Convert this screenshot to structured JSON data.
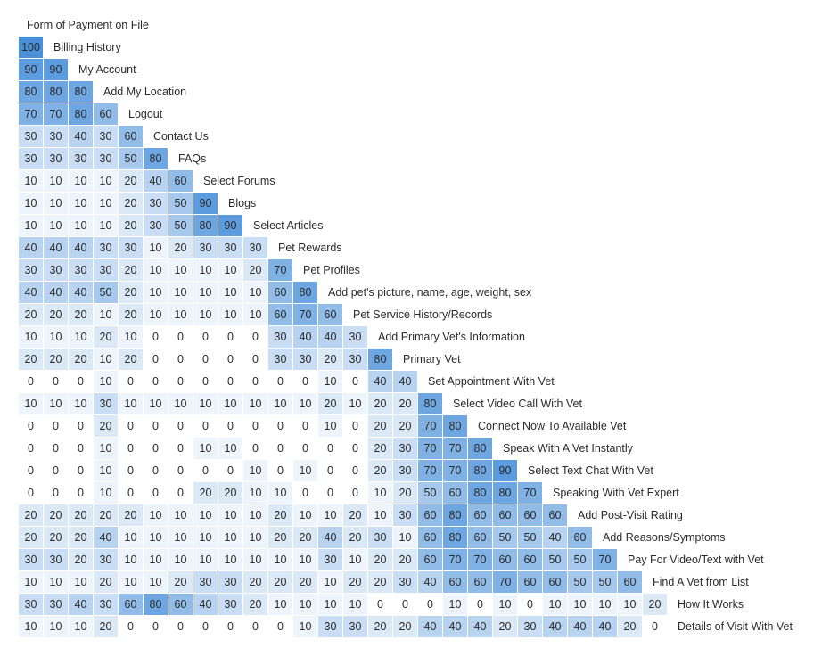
{
  "chart_data": {
    "type": "heatmap",
    "title": "",
    "top_label": "Form of Payment on File",
    "color_scale": [
      "#ffffff",
      "#4a90d9"
    ],
    "rows": [
      {
        "label": "Billing History",
        "values": [
          100
        ]
      },
      {
        "label": "My Account",
        "values": [
          90,
          90
        ]
      },
      {
        "label": "Add My Location",
        "values": [
          80,
          80,
          80
        ]
      },
      {
        "label": "Logout",
        "values": [
          70,
          70,
          80,
          60
        ]
      },
      {
        "label": "Contact Us",
        "values": [
          30,
          30,
          40,
          30,
          60
        ]
      },
      {
        "label": "FAQs",
        "values": [
          30,
          30,
          30,
          30,
          50,
          80
        ]
      },
      {
        "label": "Select Forums",
        "values": [
          10,
          10,
          10,
          10,
          20,
          40,
          60
        ]
      },
      {
        "label": "Blogs",
        "values": [
          10,
          10,
          10,
          10,
          20,
          30,
          50,
          90
        ]
      },
      {
        "label": "Select Articles",
        "values": [
          10,
          10,
          10,
          10,
          20,
          30,
          50,
          80,
          90
        ]
      },
      {
        "label": "Pet Rewards",
        "values": [
          40,
          40,
          40,
          30,
          30,
          10,
          20,
          30,
          30,
          30
        ]
      },
      {
        "label": "Pet Profiles",
        "values": [
          30,
          30,
          30,
          30,
          20,
          10,
          10,
          10,
          10,
          20,
          70
        ]
      },
      {
        "label": "Add pet's picture, name, age, weight, sex",
        "values": [
          40,
          40,
          40,
          50,
          20,
          10,
          10,
          10,
          10,
          10,
          60,
          80
        ]
      },
      {
        "label": "Pet Service History/Records",
        "values": [
          20,
          20,
          20,
          10,
          20,
          10,
          10,
          10,
          10,
          10,
          60,
          70,
          60
        ]
      },
      {
        "label": "Add Primary Vet's Information",
        "values": [
          10,
          10,
          10,
          20,
          10,
          0,
          0,
          0,
          0,
          0,
          30,
          40,
          40,
          30
        ]
      },
      {
        "label": "Primary Vet",
        "values": [
          20,
          20,
          20,
          10,
          20,
          0,
          0,
          0,
          0,
          0,
          30,
          30,
          20,
          30,
          80
        ]
      },
      {
        "label": "Set Appointment With Vet",
        "values": [
          0,
          0,
          0,
          10,
          0,
          0,
          0,
          0,
          0,
          0,
          0,
          0,
          10,
          0,
          40,
          40
        ]
      },
      {
        "label": "Select Video Call With Vet",
        "values": [
          10,
          10,
          10,
          30,
          10,
          10,
          10,
          10,
          10,
          10,
          10,
          10,
          20,
          10,
          20,
          20,
          80
        ]
      },
      {
        "label": "Connect Now To Available Vet",
        "values": [
          0,
          0,
          0,
          20,
          0,
          0,
          0,
          0,
          0,
          0,
          0,
          0,
          10,
          0,
          20,
          20,
          70,
          80
        ]
      },
      {
        "label": "Speak With A Vet Instantly",
        "values": [
          0,
          0,
          0,
          10,
          0,
          0,
          0,
          10,
          10,
          0,
          0,
          0,
          0,
          0,
          20,
          30,
          70,
          70,
          80
        ]
      },
      {
        "label": "Select Text Chat With Vet",
        "values": [
          0,
          0,
          0,
          10,
          0,
          0,
          0,
          0,
          0,
          10,
          0,
          10,
          0,
          0,
          20,
          30,
          70,
          70,
          80,
          90
        ]
      },
      {
        "label": "Speaking With Vet Expert",
        "values": [
          0,
          0,
          0,
          10,
          0,
          0,
          0,
          20,
          20,
          10,
          10,
          0,
          0,
          0,
          10,
          20,
          50,
          60,
          80,
          80,
          70
        ]
      },
      {
        "label": "Add Post-Visit Rating",
        "values": [
          20,
          20,
          20,
          20,
          20,
          10,
          10,
          10,
          10,
          10,
          20,
          10,
          10,
          20,
          10,
          30,
          60,
          80,
          60,
          60,
          60,
          60
        ]
      },
      {
        "label": "Add Reasons/Symptoms",
        "values": [
          20,
          20,
          20,
          40,
          10,
          10,
          10,
          10,
          10,
          10,
          20,
          20,
          40,
          20,
          30,
          10,
          60,
          80,
          60,
          50,
          50,
          40,
          60
        ]
      },
      {
        "label": "Pay For Video/Text with Vet",
        "values": [
          30,
          30,
          20,
          30,
          10,
          10,
          10,
          10,
          10,
          10,
          10,
          10,
          30,
          10,
          20,
          20,
          60,
          70,
          70,
          60,
          60,
          50,
          50,
          70
        ]
      },
      {
        "label": "Find A Vet from List",
        "values": [
          10,
          10,
          10,
          20,
          10,
          10,
          20,
          30,
          30,
          20,
          20,
          20,
          10,
          20,
          20,
          30,
          40,
          60,
          60,
          70,
          60,
          60,
          50,
          50,
          60
        ]
      },
      {
        "label": "How It Works",
        "values": [
          30,
          30,
          40,
          30,
          60,
          80,
          60,
          40,
          30,
          20,
          10,
          10,
          10,
          10,
          0,
          0,
          0,
          10,
          0,
          10,
          0,
          10,
          10,
          10,
          10,
          20
        ]
      },
      {
        "label": "Details of Visit With Vet",
        "values": [
          10,
          10,
          10,
          20,
          0,
          0,
          0,
          0,
          0,
          0,
          0,
          10,
          30,
          30,
          20,
          20,
          40,
          40,
          40,
          20,
          30,
          40,
          40,
          40,
          20,
          0
        ]
      }
    ]
  }
}
